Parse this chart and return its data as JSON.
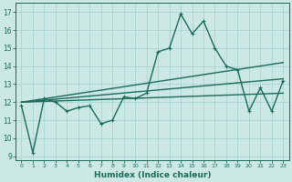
{
  "xlabel": "Humidex (Indice chaleur)",
  "background_color": "#cce8e4",
  "grid_color": "#aad4d0",
  "line_color": "#1a6b5a",
  "xlim": [
    -0.5,
    23.5
  ],
  "ylim": [
    8.8,
    17.5
  ],
  "yticks": [
    9,
    10,
    11,
    12,
    13,
    14,
    15,
    16,
    17
  ],
  "xticks": [
    0,
    1,
    2,
    3,
    4,
    5,
    6,
    7,
    8,
    9,
    10,
    11,
    12,
    13,
    14,
    15,
    16,
    17,
    18,
    19,
    20,
    21,
    22,
    23
  ],
  "line1_x": [
    0,
    1,
    2,
    3,
    4,
    5,
    6,
    7,
    8,
    9,
    10,
    11,
    12,
    13,
    14,
    15,
    16,
    17,
    18,
    19,
    20,
    21,
    22,
    23
  ],
  "line1_y": [
    11.8,
    9.2,
    12.2,
    12.0,
    11.5,
    11.7,
    11.8,
    10.8,
    11.0,
    12.3,
    12.2,
    12.5,
    14.8,
    15.0,
    16.9,
    15.8,
    16.5,
    15.0,
    14.0,
    13.8,
    11.5,
    12.8,
    11.5,
    13.2
  ],
  "line2_x": [
    0,
    23
  ],
  "line2_y": [
    12.0,
    13.3
  ],
  "line3_x": [
    0,
    23
  ],
  "line3_y": [
    12.0,
    14.2
  ],
  "line4_x": [
    0,
    23
  ],
  "line4_y": [
    12.0,
    12.5
  ],
  "linewidth": 1.0
}
